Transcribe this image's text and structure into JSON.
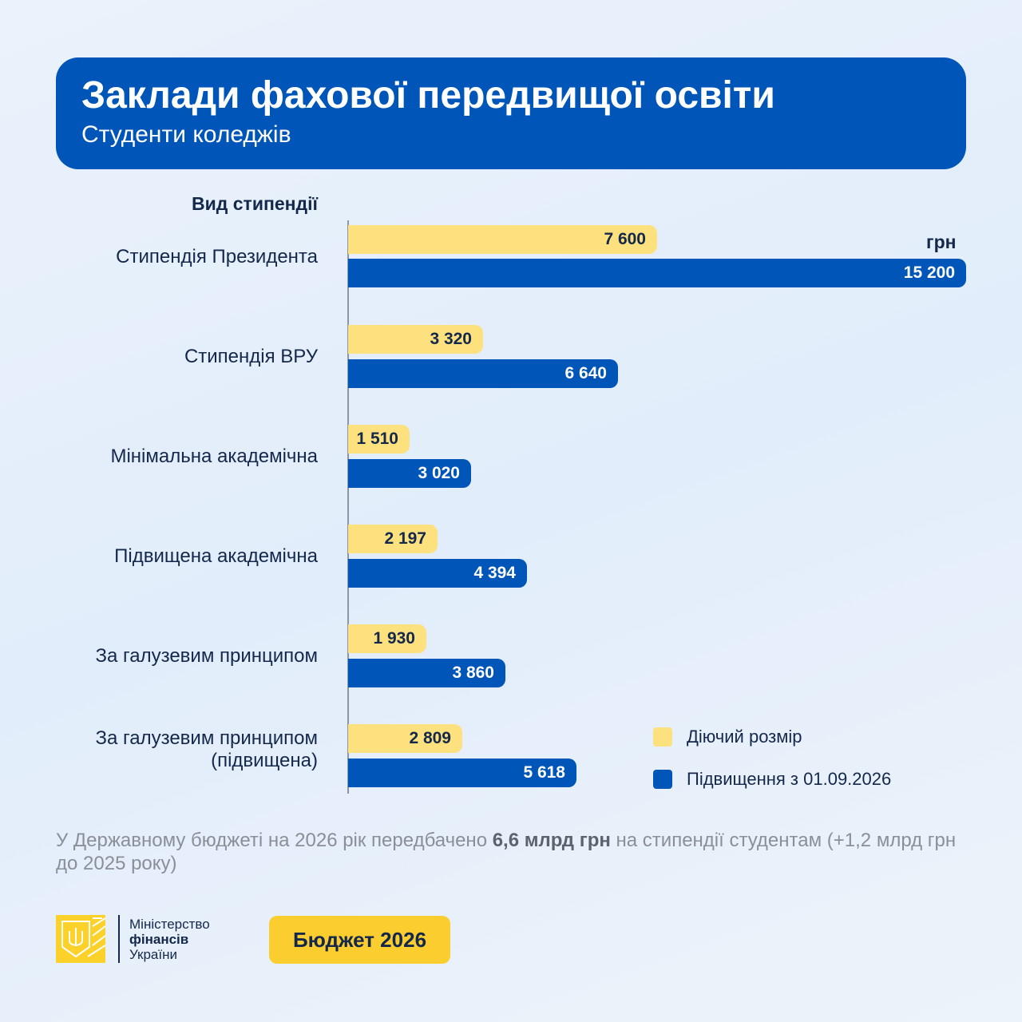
{
  "header": {
    "title": "Заклади фахової передвищої освіти",
    "subtitle": "Студенти коледжів"
  },
  "chart_data": {
    "type": "bar",
    "orientation": "horizontal",
    "ylabel": "Вид стипендії",
    "unit": "грн",
    "categories": [
      "Стипендія Президента",
      "Стипендія ВРУ",
      "Мінімальна академічна",
      "Підвищена академічна",
      "За галузевим принципом",
      "За галузевим принципом (підвищена)"
    ],
    "series": [
      {
        "name": "Діючий розмір",
        "color": "#fde17f",
        "values": [
          7600,
          3320,
          1510,
          2197,
          1930,
          2809
        ],
        "labels": [
          "7 600",
          "3 320",
          "1 510",
          "2 197",
          "1 930",
          "2 809"
        ]
      },
      {
        "name": "Підвищення з 01.09.2026",
        "color": "#0055b8",
        "values": [
          15200,
          6640,
          3020,
          4394,
          3860,
          5618
        ],
        "labels": [
          "15 200",
          "6 640",
          "3 020",
          "4 394",
          "3 860",
          "5 618"
        ]
      }
    ],
    "xlim": [
      0,
      15200
    ],
    "grid": false,
    "legend": "bottom-right"
  },
  "note": {
    "pre": "У Державному бюджеті на 2026 рік передбачено ",
    "bold": "6,6 млрд грн",
    "post": " на стипендії студентам (+1,2 млрд грн до 2025 року)"
  },
  "logo": {
    "line1": "Міністерство",
    "line2": "фінансів",
    "line3": "України"
  },
  "badge": "Бюджет 2026"
}
